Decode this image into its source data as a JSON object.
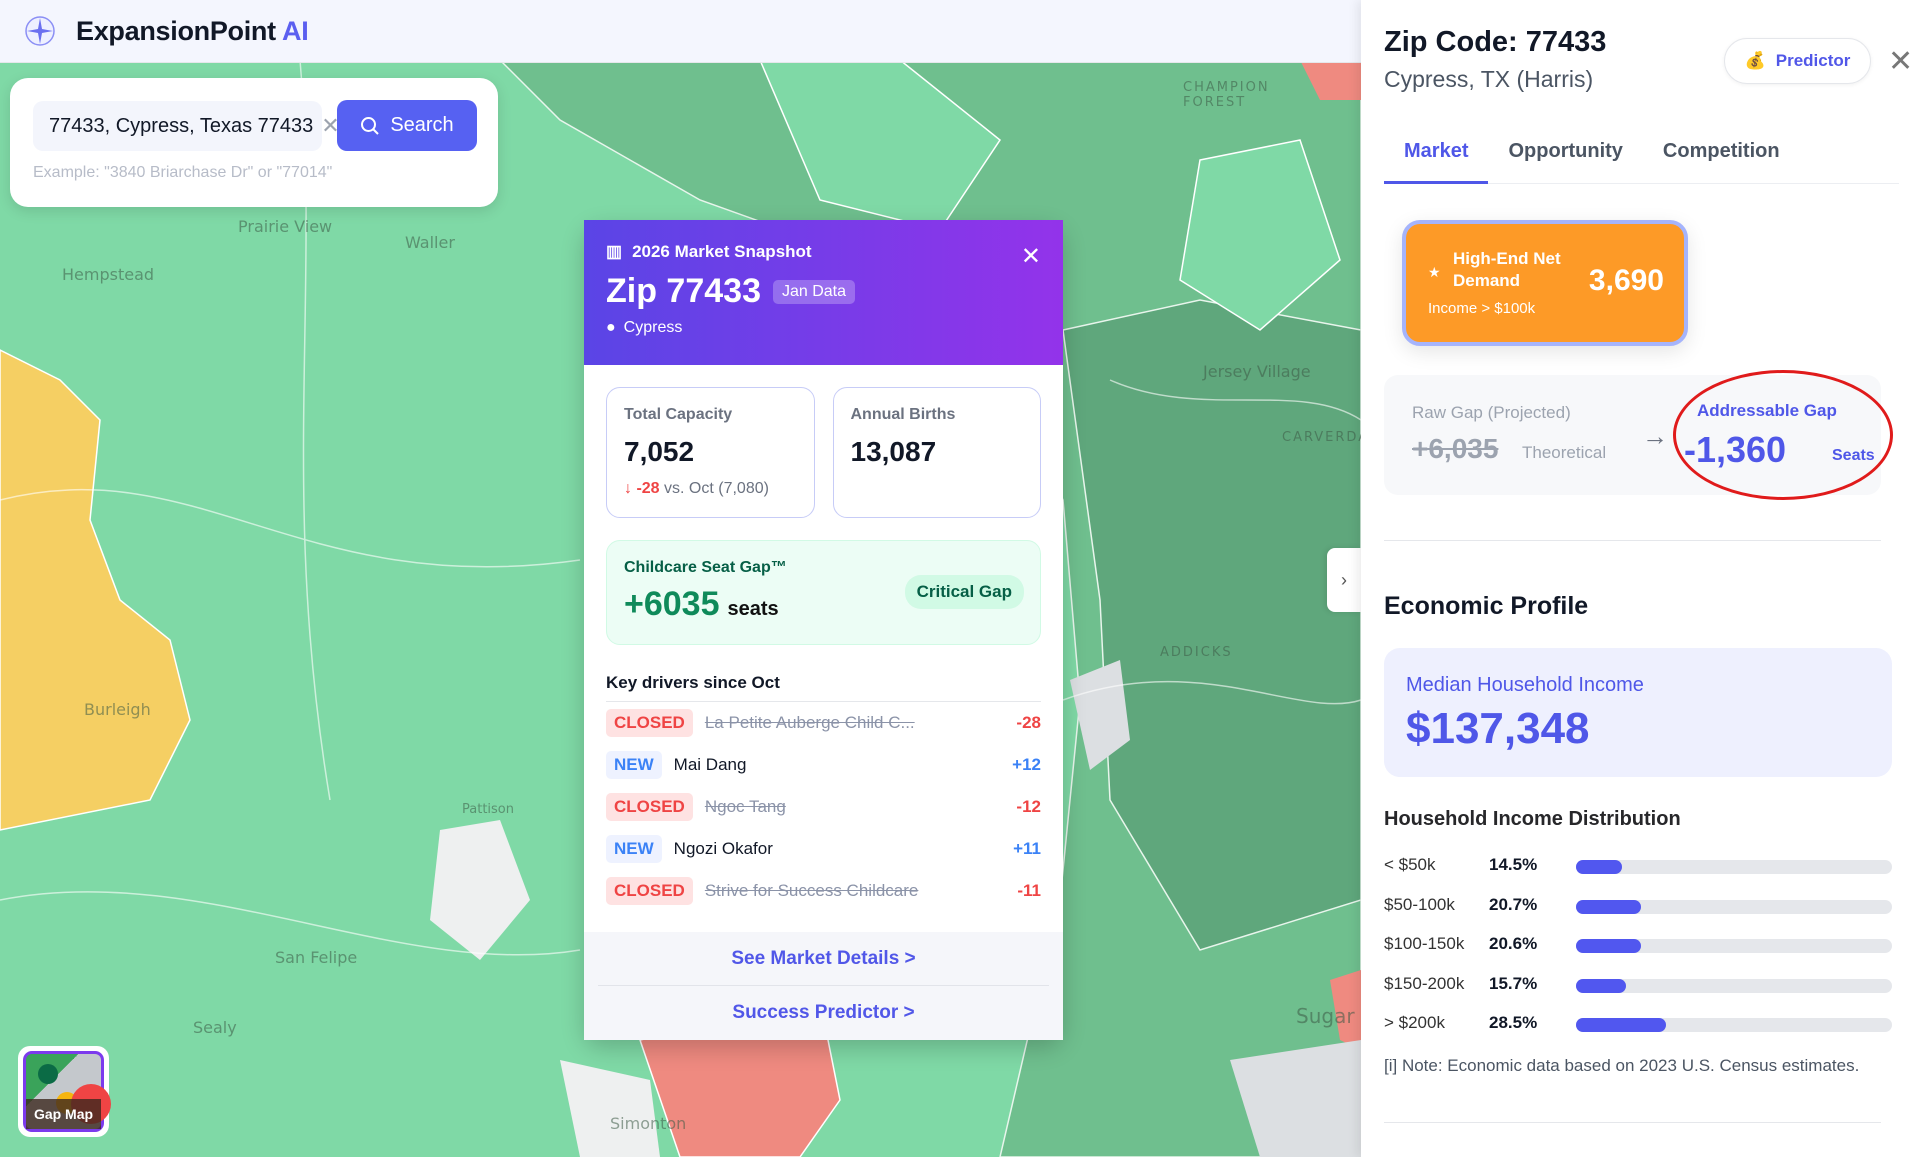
{
  "app": {
    "name": "ExpansionPoint",
    "name_accent": "AI",
    "logo_icon": "compass-icon"
  },
  "search": {
    "value": "77433, Cypress, Texas 77433",
    "button_label": "Search",
    "hint": "Example: \"3840 Briarchase Dr\" or \"77014\""
  },
  "map": {
    "labels": [
      "Prairie View",
      "Waller",
      "Hempstead",
      "Burleigh",
      "Pattison",
      "San Felipe",
      "Sealy",
      "Simonton",
      "Jersey Village",
      "CARVERDALE",
      "CHAMPION FOREST",
      "ADDICKS",
      "Sugar"
    ],
    "colors": {
      "low": "#7fd9a6",
      "mid": "#6fbf8e",
      "high": "#5fa77c",
      "surplus": "#ef8a80",
      "yellow": "#f5cf63"
    },
    "gap_map_label": "Gap Map"
  },
  "popup": {
    "title": "2026 Market Snapshot",
    "zip": "Zip 77433",
    "data_badge": "Jan Data",
    "city": "Cypress",
    "total_capacity": {
      "label": "Total Capacity",
      "value": "7,052",
      "delta": "-28",
      "delta_text": "vs. Oct (7,080)"
    },
    "annual_births": {
      "label": "Annual Births",
      "value": "13,087"
    },
    "seat_gap": {
      "label": "Childcare Seat Gap™",
      "value": "+6035",
      "unit": "seats",
      "badge": "Critical Gap"
    },
    "drivers_title": "Key drivers since Oct",
    "drivers": [
      {
        "status": "CLOSED",
        "name": "La Petite Auberge Child C...",
        "delta": "-28"
      },
      {
        "status": "NEW",
        "name": "Mai Dang",
        "delta": "+12"
      },
      {
        "status": "CLOSED",
        "name": "Ngoc Tang",
        "delta": "-12"
      },
      {
        "status": "NEW",
        "name": "Ngozi Okafor",
        "delta": "+11"
      },
      {
        "status": "CLOSED",
        "name": "Strive for Success Childcare",
        "delta": "-11"
      }
    ],
    "links": [
      "See Market Details >",
      "Success Predictor >"
    ]
  },
  "panel": {
    "title": "Zip Code: 77433",
    "subtitle": "Cypress, TX (Harris)",
    "predictor_label": "Predictor",
    "tabs": [
      {
        "label": "Market",
        "active": true
      },
      {
        "label": "Opportunity",
        "active": false
      },
      {
        "label": "Competition",
        "active": false
      }
    ],
    "high_end": {
      "title": "High-End Net Demand",
      "sub": "Income > $100k",
      "value": "3,690"
    },
    "raw_gap": {
      "label": "Raw Gap (Projected)",
      "value": "+6,035",
      "note": "Theoretical"
    },
    "addressable_gap": {
      "label": "Addressable Gap",
      "value": "-1,360",
      "unit": "Seats"
    },
    "economic_title": "Economic Profile",
    "median_income": {
      "label": "Median Household Income",
      "value": "$137,348"
    },
    "distribution_title": "Household Income Distribution",
    "distribution": [
      {
        "label": "< $50k",
        "pct_text": "14.5%",
        "pct": 14.5
      },
      {
        "label": "$50-100k",
        "pct_text": "20.7%",
        "pct": 20.7
      },
      {
        "label": "$100-150k",
        "pct_text": "20.6%",
        "pct": 20.6
      },
      {
        "label": "$150-200k",
        "pct_text": "15.7%",
        "pct": 15.7
      },
      {
        "label": "> $200k",
        "pct_text": "28.5%",
        "pct": 28.5
      }
    ],
    "note": "[i] Note: Economic data based on 2023 U.S. Census estimates.",
    "accent": "#4f57e8"
  }
}
